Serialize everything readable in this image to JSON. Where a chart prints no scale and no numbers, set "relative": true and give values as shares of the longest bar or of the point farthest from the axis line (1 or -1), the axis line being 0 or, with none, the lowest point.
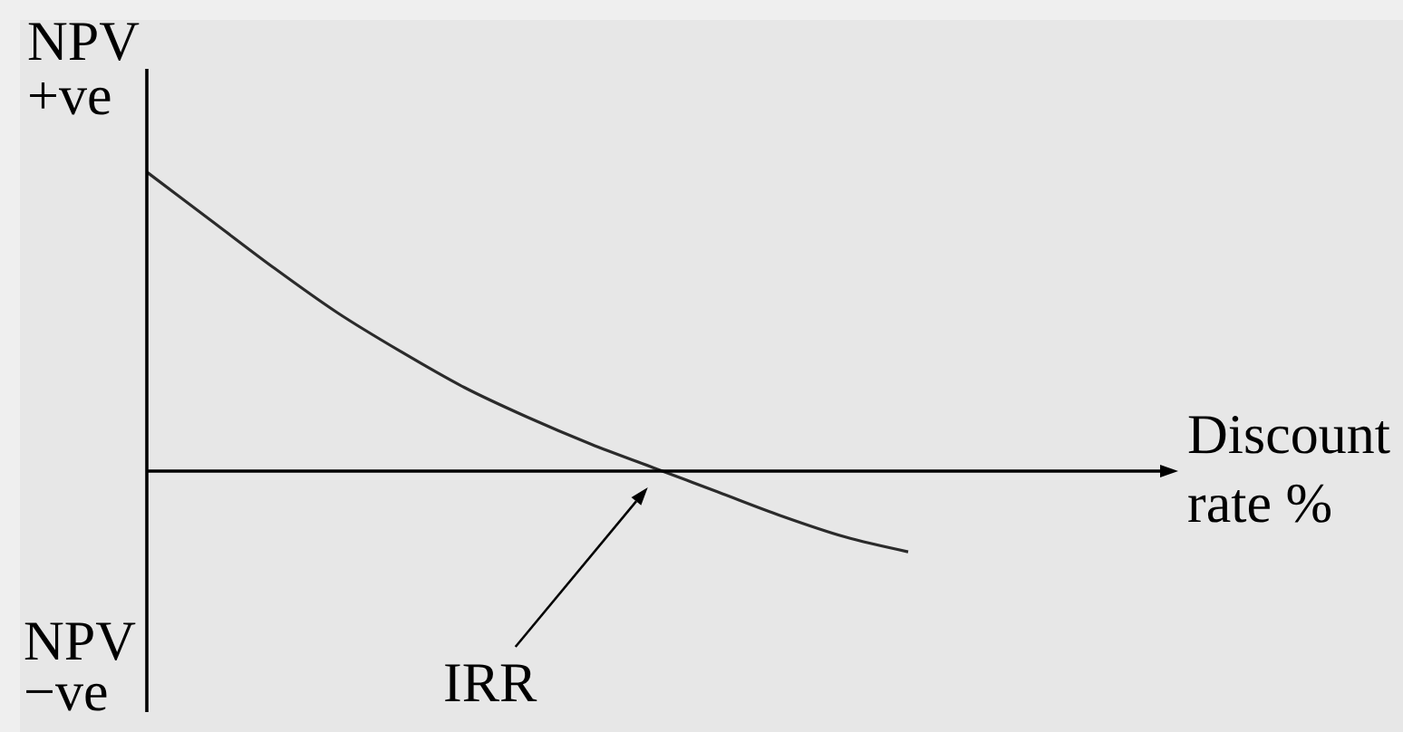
{
  "chart_data": {
    "type": "line",
    "relative": true,
    "categories": [
      null,
      null,
      null,
      null,
      null,
      null,
      null,
      null,
      null,
      null,
      null,
      null,
      null,
      null,
      null,
      null,
      null
    ],
    "values": [
      1,
      0.84,
      0.68,
      0.53,
      0.4,
      0.28,
      0.18,
      0.09,
      0.01,
      -0.07,
      -0.15,
      -0.22,
      -0.27,
      null,
      null,
      null,
      null
    ],
    "color": "#2b2b2b",
    "xlabel": "Discount rate %",
    "annotations": [
      "NPV +ve",
      "NPV −ve",
      "IRR"
    ]
  }
}
